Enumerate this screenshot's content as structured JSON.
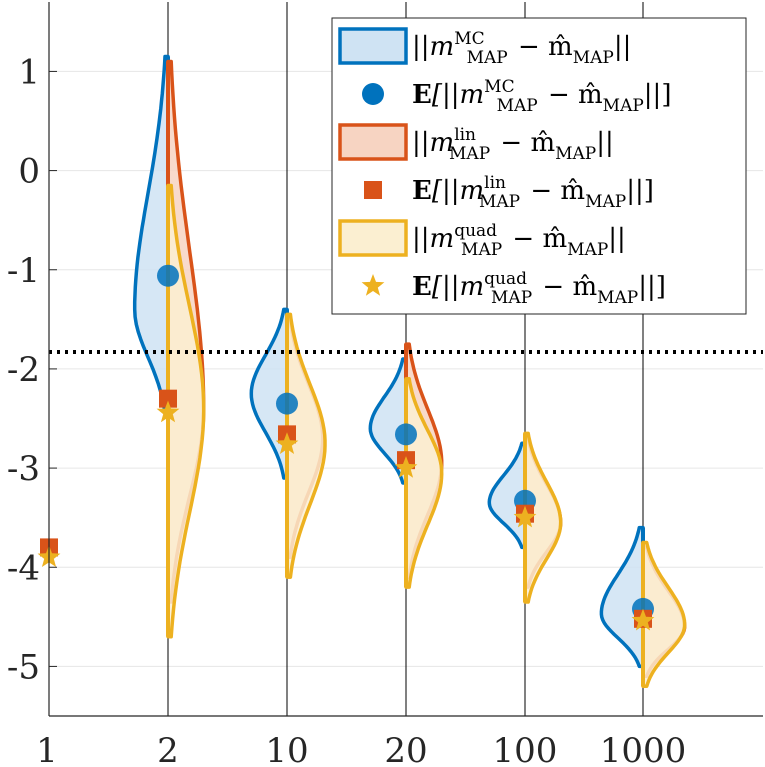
{
  "chart_data": {
    "type": "violin",
    "title": "",
    "xlabel": "",
    "ylabel": "",
    "categories": [
      "1",
      "2",
      "10",
      "20",
      "100",
      "1000"
    ],
    "ylim": [
      -5.5,
      1.7
    ],
    "yticks": [
      1,
      0,
      -1,
      -2,
      -3,
      -4,
      -5
    ],
    "ytick_labels": [
      "1",
      "0",
      "-1",
      "-2",
      "-3",
      "-4",
      "-5"
    ],
    "grid": true,
    "reference_line": {
      "y": -1.83,
      "style": "dotted",
      "color": "#000000"
    },
    "colors": {
      "mc": "#0072bd",
      "lin": "#d95319",
      "quad": "#edb120"
    },
    "series": [
      {
        "name": "MC",
        "side": "left",
        "mean_values": [
          null,
          -1.06,
          -2.35,
          -2.66,
          -3.33,
          -4.42
        ],
        "spread": [
          null,
          {
            "min": -2.45,
            "max": 1.15,
            "mode": -1.4,
            "width": 0.28
          },
          {
            "min": -3.1,
            "max": -1.4,
            "mode": -2.25,
            "width": 0.3
          },
          {
            "min": -3.15,
            "max": -1.9,
            "mode": -2.6,
            "width": 0.3
          },
          {
            "min": -3.8,
            "max": -2.75,
            "mode": -3.35,
            "width": 0.3
          },
          {
            "min": -5.0,
            "max": -3.6,
            "mode": -4.47,
            "width": 0.35
          }
        ]
      },
      {
        "name": "lin",
        "side": "right",
        "mean_values": [
          -3.8,
          -2.3,
          -2.66,
          -2.92,
          -3.46,
          -4.52
        ],
        "spread": [
          null,
          {
            "min": -4.35,
            "max": 1.1,
            "mode": -2.4,
            "width": 0.3
          },
          {
            "min": -3.9,
            "max": -1.5,
            "mode": -2.7,
            "width": 0.3
          },
          {
            "min": -4.1,
            "max": -1.75,
            "mode": -2.95,
            "width": 0.3
          },
          {
            "min": -4.2,
            "max": -2.7,
            "mode": -3.55,
            "width": 0.3
          },
          {
            "min": -5.1,
            "max": -3.8,
            "mode": -4.6,
            "width": 0.35
          }
        ]
      },
      {
        "name": "quad",
        "side": "right",
        "mean_values": [
          -3.9,
          -2.44,
          -2.76,
          -3.0,
          -3.5,
          -4.54
        ],
        "spread": [
          null,
          {
            "min": -4.7,
            "max": -0.15,
            "mode": -2.4,
            "width": 0.3
          },
          {
            "min": -4.1,
            "max": -1.45,
            "mode": -2.75,
            "width": 0.32
          },
          {
            "min": -4.2,
            "max": -2.1,
            "mode": -3.05,
            "width": 0.3
          },
          {
            "min": -4.35,
            "max": -2.65,
            "mode": -3.55,
            "width": 0.3
          },
          {
            "min": -5.2,
            "max": -3.75,
            "mode": -4.58,
            "width": 0.35
          }
        ]
      }
    ],
    "legend": {
      "position": "top-right",
      "entries": [
        {
          "label": "||m_MAP^MC − m̂_MAP||",
          "sup": "MC",
          "kind": "patch",
          "color_key": "mc"
        },
        {
          "label": "E[||m_MAP^MC − m̂_MAP||]",
          "sup": "MC",
          "kind": "circle",
          "color_key": "mc"
        },
        {
          "label": "||m_MAP^lin − m̂_MAP||",
          "sup": "lin",
          "kind": "patch",
          "color_key": "lin"
        },
        {
          "label": "E[||m_MAP^lin − m̂_MAP||]",
          "sup": "lin",
          "kind": "square",
          "color_key": "lin"
        },
        {
          "label": "||m_MAP^quad − m̂_MAP||",
          "sup": "quad",
          "kind": "patch",
          "color_key": "quad"
        },
        {
          "label": "E[||m_MAP^quad − m̂_MAP||]",
          "sup": "quad",
          "kind": "star",
          "color_key": "quad"
        }
      ]
    }
  }
}
